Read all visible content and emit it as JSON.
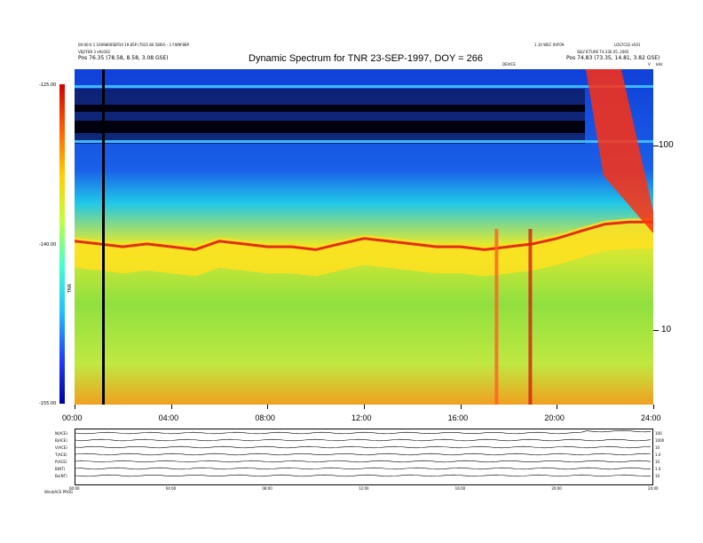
{
  "header": {
    "left_line1": "00:00:0 1 1009800SEP10 19 85P (7025 80 580V) - 1 FW9F88P",
    "left_line2": "VEJFF80 3 efic002",
    "left_pos_label": "Pos",
    "left_pos_value": "76.35 (78.58, 8.58, 3.08 GSE)",
    "center_small": "1.10 WEC 0VF09",
    "right_line1": "LOS7C02 e501",
    "right_line2": "SELFICTURE T4.33E 05, 2005",
    "right_pos_label": "Pos",
    "right_pos_value": "74.83 (73.35, 14.81, 3.82 GSE)",
    "sub_center": "DEVICE",
    "corner_right": "kHz",
    "corner_v": "V"
  },
  "chart_data": {
    "type": "heatmap",
    "title": "Dynamic Spectrum for TNR 23-SEP-1997, DOY = 266",
    "x_ticks": [
      "00:00",
      "04:00",
      "08:00",
      "12:00",
      "16:00",
      "20:00",
      "24:00"
    ],
    "x_tick_hours": [
      0,
      4,
      8,
      12,
      16,
      20,
      24
    ],
    "x_range_hours": [
      0,
      24
    ],
    "y_ticks": [
      "100",
      "10"
    ],
    "y_tick_values": [
      100,
      10
    ],
    "y_range_khz": [
      4,
      250
    ],
    "y_scale": "log",
    "y_unit_label": "kHz",
    "colorbar": {
      "labels": [
        "-125.00",
        "-140.00",
        "-155.00"
      ],
      "values": [
        -125,
        -140,
        -155
      ],
      "side_label": "TNR"
    },
    "features": {
      "plasma_line_khz": [
        [
          0,
          30
        ],
        [
          1,
          29
        ],
        [
          2,
          28
        ],
        [
          3,
          29
        ],
        [
          4,
          28
        ],
        [
          5,
          27
        ],
        [
          6,
          30
        ],
        [
          7,
          29
        ],
        [
          8,
          28
        ],
        [
          9,
          28
        ],
        [
          10,
          27
        ],
        [
          11,
          29
        ],
        [
          12,
          31
        ],
        [
          13,
          30
        ],
        [
          14,
          29
        ],
        [
          15,
          28
        ],
        [
          16,
          28
        ],
        [
          17,
          27
        ],
        [
          18,
          28
        ],
        [
          19,
          29
        ],
        [
          20,
          31
        ],
        [
          21,
          34
        ],
        [
          22,
          37
        ],
        [
          23,
          38
        ],
        [
          24,
          38
        ]
      ],
      "burst_hours": [
        17.5,
        18.9
      ],
      "data_gap_hour": 1.2,
      "radio_burst_start_hour": 21.2
    }
  },
  "bottom_panels": {
    "row_labels": [
      "N(ACE)",
      "B(ACE)",
      "V(ACE)",
      "T(ACE)",
      "P(ACE)",
      "B(NT)",
      "Bx(NT)"
    ],
    "right_labels": [
      "100",
      "1000",
      "10",
      "1.0",
      "10",
      "1.0",
      "10"
    ],
    "x_ticks": [
      "00:00",
      "04:00",
      "08:00",
      "12:00",
      "16:00",
      "20:00",
      "24:00"
    ],
    "footer": "Wind/ACE PROG"
  }
}
